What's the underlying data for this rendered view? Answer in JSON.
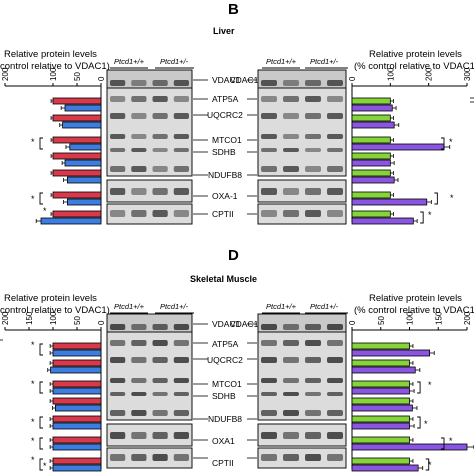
{
  "figure": {
    "panel_b": {
      "letter": "B",
      "tissue": "Liver",
      "left_axis_title_1": "Relative protein levels",
      "left_axis_title_2": "control relative to VDAC1)",
      "right_axis_title_1": "Relative protein levels",
      "right_axis_title_2": "(% control relative to VDAC1)",
      "left_ticks": [
        "200",
        "100",
        "50",
        "0"
      ],
      "right_ticks": [
        "0",
        "100",
        "200",
        "300"
      ],
      "genotype_wt": "Ptcd1+/+",
      "genotype_het": "Ptcd1+/-",
      "left_labels": [
        "VDAC1",
        "ATP5A",
        "UQCRC2",
        "MTCO1",
        "SDHB",
        "NDUFB8",
        "OXA-1",
        "CPTII"
      ],
      "right_labels": [
        "VDAC1"
      ],
      "left_stars": [
        "*",
        "*",
        "*"
      ],
      "right_stars": [
        "*",
        "*",
        "*"
      ]
    },
    "panel_d": {
      "letter": "D",
      "tissue": "Skeletal Muscle",
      "left_axis_title_1": "Relative protein levels",
      "left_axis_title_2": "control relative to VDAC1)",
      "right_axis_title_1": "Relative protein levels",
      "right_axis_title_2": "(% control relative to VDAC1",
      "left_ticks": [
        "200",
        "150",
        "100",
        "50",
        "0"
      ],
      "right_ticks": [
        "0",
        "50",
        "100",
        "150",
        "200"
      ],
      "genotype_wt": "Ptcd1+/+",
      "genotype_het": "Ptcd1+/-",
      "left_labels": [
        "VDAC1",
        "ATP5A",
        "UQCRC2",
        "MTCO1",
        "SDHB",
        "NDUFB8",
        "OXA1",
        "CPTII"
      ],
      "right_labels": [
        "VDAC1"
      ],
      "left_stars": [
        "*",
        "*",
        "*",
        "*",
        "*",
        "*"
      ],
      "right_stars": [
        "*",
        "*",
        "*",
        "*"
      ]
    },
    "colors": {
      "left_wt": "#d83a4b",
      "left_het": "#3e7de0",
      "right_wt": "#86d33a",
      "right_het": "#8a55e0",
      "blot_dark": "#1e1e1e",
      "blot_bg": "#dcdcdc"
    }
  },
  "chart_data": [
    {
      "type": "bar",
      "orientation": "horizontal",
      "x_direction": "reversed",
      "categories": [
        "ATP5A",
        "UQCRC2",
        "MTCO1",
        "SDHB",
        "NDUFB8",
        "OXA-1",
        "CPTII"
      ],
      "xlim": [
        0,
        200
      ],
      "series": [
        {
          "values": [
            100,
            100,
            100,
            100,
            100,
            100,
            100
          ],
          "errors": [
            4,
            4,
            4,
            4,
            4,
            4,
            4
          ]
        },
        {
          "values": [
            75,
            80,
            65,
            75,
            70,
            70,
            125
          ],
          "errors": [
            8,
            6,
            8,
            6,
            8,
            8,
            10
          ]
        }
      ]
    },
    {
      "type": "bar",
      "orientation": "horizontal",
      "categories": [
        "ATP5A",
        "UQCRC2",
        "MTCO1",
        "SDHB",
        "NDUFB8",
        "OXA-1",
        "CPTII"
      ],
      "xlim": [
        0,
        300
      ],
      "series": [
        {
          "values": [
            100,
            100,
            100,
            100,
            100,
            100,
            100
          ],
          "errors": [
            8,
            8,
            8,
            8,
            8,
            8,
            8
          ]
        },
        {
          "values": [
            105,
            110,
            240,
            100,
            110,
            195,
            160
          ],
          "errors": [
            10,
            12,
            15,
            10,
            10,
            12,
            10
          ]
        }
      ]
    },
    {
      "type": "bar",
      "orientation": "horizontal",
      "x_direction": "reversed",
      "categories": [
        "ATP5A",
        "UQCRC2",
        "MTCO1",
        "SDHB",
        "NDUFB8",
        "OXA1",
        "CPTII"
      ],
      "xlim": [
        0,
        200
      ],
      "series": [
        {
          "values": [
            100,
            100,
            100,
            100,
            100,
            100,
            100
          ],
          "errors": [
            6,
            6,
            6,
            6,
            6,
            6,
            6
          ]
        },
        {
          "values": [
            100,
            105,
            100,
            95,
            100,
            100,
            100
          ],
          "errors": [
            6,
            6,
            6,
            6,
            6,
            6,
            6
          ]
        }
      ]
    },
    {
      "type": "bar",
      "orientation": "horizontal",
      "categories": [
        "ATP5A",
        "UQCRC2",
        "MTCO1",
        "SDHB",
        "NDUFB8",
        "OXA1",
        "CPTII"
      ],
      "xlim": [
        0,
        200
      ],
      "series": [
        {
          "values": [
            100,
            100,
            100,
            100,
            100,
            100,
            100
          ],
          "errors": [
            6,
            6,
            6,
            6,
            6,
            6,
            6
          ]
        },
        {
          "values": [
            135,
            110,
            100,
            105,
            100,
            200,
            115
          ],
          "errors": [
            8,
            8,
            8,
            8,
            8,
            12,
            8
          ]
        }
      ]
    }
  ]
}
